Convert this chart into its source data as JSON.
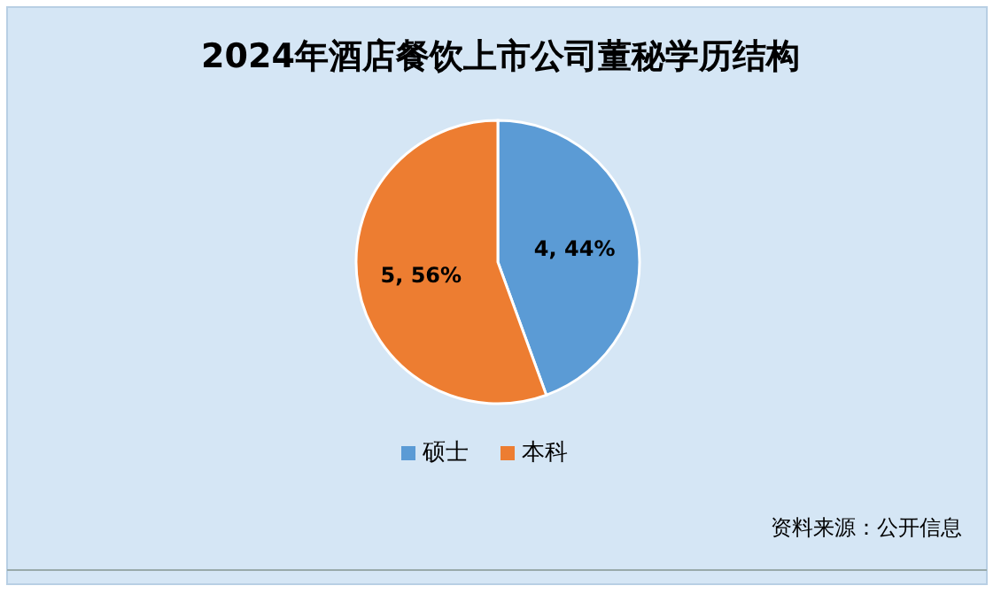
{
  "chart_data": {
    "type": "pie",
    "title": "2024年酒店餐饮上市公司董秘学历结构",
    "categories": [
      "硕士",
      "本科"
    ],
    "values": [
      4,
      5
    ],
    "colors": [
      "#5b9bd5",
      "#ed7d31"
    ],
    "value_labels": [
      "4, 44%",
      "5, 56%"
    ],
    "legend": "bottom",
    "annotations": [
      "资料来源：公开信息"
    ]
  }
}
